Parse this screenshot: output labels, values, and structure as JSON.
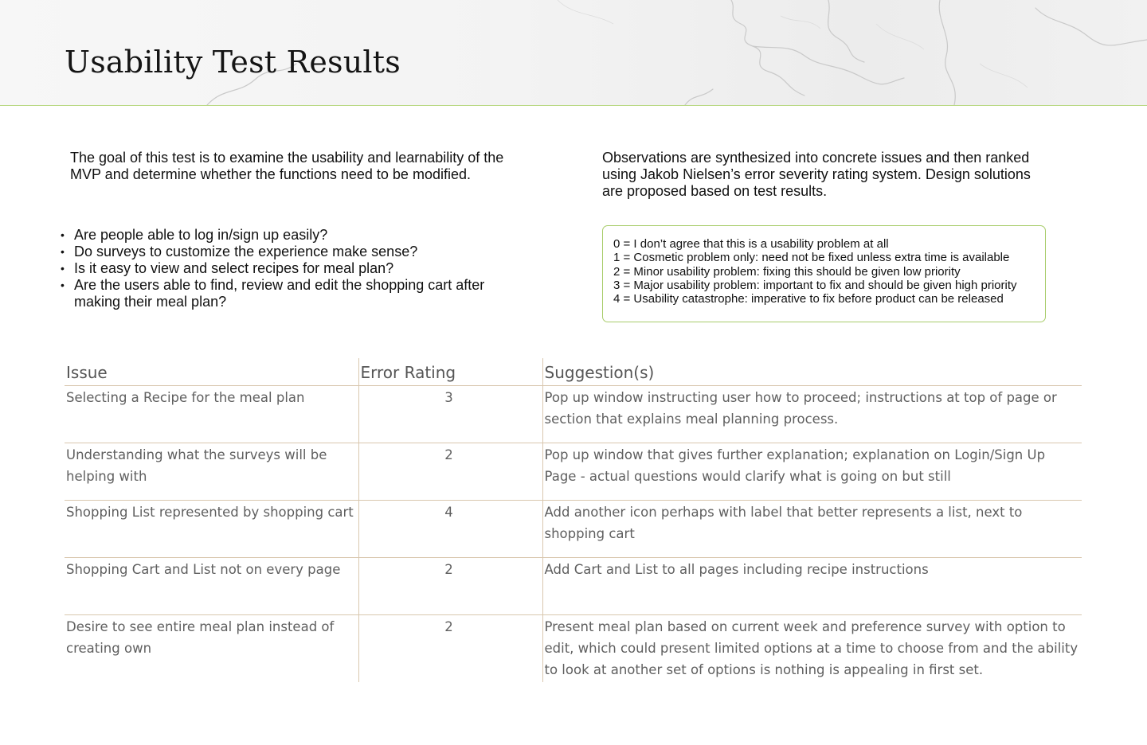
{
  "page": {
    "title": "Usability Test Results",
    "accent_color": "#a8cc6a"
  },
  "intro": "The goal of this test is to examine the usability and learnability of the MVP and determine whether the functions need to be modified.",
  "observations": "Observations are synthesized into concrete issues and then ranked using Jakob Nielsen’s error severity rating system. Design solutions are proposed based on  test results.",
  "questions": [
    "Are people able to log in/sign up easily?",
    "Do surveys to customize the experience make sense?",
    "Is it easy to view and select recipes for meal plan?",
    "Are the users able to find, review and edit the shopping cart after making their meal plan?"
  ],
  "severity_scale": [
    "0 = I don’t agree that this is a usability problem at all",
    "1 = Cosmetic problem only: need not be fixed unless extra time is available",
    "2 = Minor usability problem: fixing this should be given low priority",
    "3 = Major usability problem: important to fix and should be given high priority",
    "4 = Usability catastrophe: imperative to fix before product can be released"
  ],
  "table": {
    "headers": [
      "Issue",
      "Error Rating",
      "Suggestion(s)"
    ],
    "rows": [
      {
        "issue": "Selecting a Recipe for the meal plan",
        "rating": "3",
        "suggestion": "Pop up window instructing user how to proceed; instructions at top of page or section that explains meal planning process."
      },
      {
        "issue": "Understanding what the surveys will be helping with",
        "rating": "2",
        "suggestion": "Pop up window that gives further explanation; explanation on Login/Sign Up Page - actual questions would clarify what is going on but still"
      },
      {
        "issue": "Shopping List represented by shopping cart",
        "rating": "4",
        "suggestion": "Add another icon perhaps with label that better represents a list, next to shopping cart"
      },
      {
        "issue": "Shopping Cart and List not on every page",
        "rating": "2",
        "suggestion": "Add Cart and List to all pages including recipe instructions"
      },
      {
        "issue": "Desire to see entire meal plan instead of creating own",
        "rating": "2",
        "suggestion": "Present meal plan based on current week and preference survey with option to edit, which could present limited options at a time to choose from and the ability to look at another set of options is nothing is appealing in first set."
      }
    ]
  }
}
